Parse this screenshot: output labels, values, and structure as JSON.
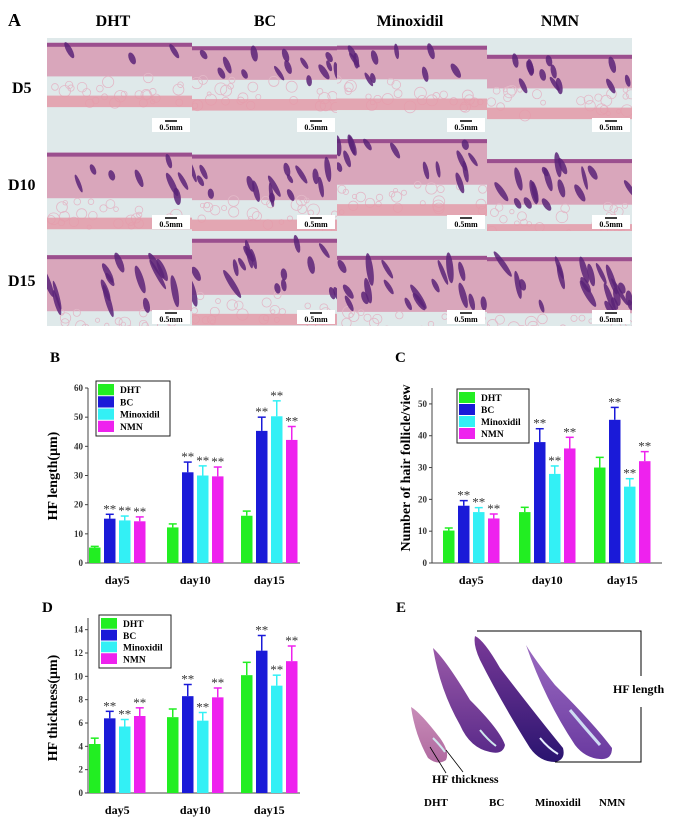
{
  "panel_labels": {
    "a": "A",
    "b": "B",
    "c": "C",
    "d": "D",
    "e": "E"
  },
  "panel_a": {
    "columns": [
      "DHT",
      "BC",
      "Minoxidil",
      "NMN"
    ],
    "rows": [
      "D5",
      "D10",
      "D15"
    ],
    "scale_bar": "0.5mm"
  },
  "colors": {
    "DHT": "#22ee22",
    "BC": "#1a1ad8",
    "Minoxidil": "#33f0f5",
    "NMN": "#ee22ee"
  },
  "chart_data": [
    {
      "panel": "B",
      "type": "bar",
      "categories": [
        "day5",
        "day10",
        "day15"
      ],
      "ylabel": "HF length(μm)",
      "ylim": [
        0,
        60
      ],
      "yticks": [
        0,
        10,
        20,
        30,
        40,
        50,
        60
      ],
      "legend": "top-left",
      "significance_label": "**",
      "series": [
        {
          "name": "DHT",
          "values": [
            5.3,
            12.2,
            16.2
          ],
          "errors": [
            0.4,
            1.2,
            1.6
          ],
          "significant": [
            false,
            false,
            false
          ]
        },
        {
          "name": "BC",
          "values": [
            15.2,
            31.1,
            45.3
          ],
          "errors": [
            1.5,
            3.5,
            4.7
          ],
          "significant": [
            true,
            true,
            true
          ]
        },
        {
          "name": "Minoxidil",
          "values": [
            14.6,
            30.0,
            50.3
          ],
          "errors": [
            1.5,
            3.3,
            5.3
          ],
          "significant": [
            true,
            true,
            true
          ]
        },
        {
          "name": "NMN",
          "values": [
            14.3,
            29.7,
            42.2
          ],
          "errors": [
            1.5,
            3.2,
            4.6
          ],
          "significant": [
            true,
            true,
            true
          ]
        }
      ]
    },
    {
      "panel": "C",
      "type": "bar",
      "categories": [
        "day5",
        "day10",
        "day15"
      ],
      "ylabel": "Number of hair follicle/view",
      "ylim": [
        0,
        55
      ],
      "yticks": [
        0,
        10,
        20,
        30,
        40,
        50
      ],
      "legend": "top-left",
      "significance_label": "**",
      "series": [
        {
          "name": "DHT",
          "values": [
            10.2,
            16,
            30
          ],
          "errors": [
            0.8,
            1.5,
            3.2
          ],
          "significant": [
            false,
            false,
            false
          ]
        },
        {
          "name": "BC",
          "values": [
            18,
            38,
            45
          ],
          "errors": [
            1.6,
            4.2,
            3.9
          ],
          "significant": [
            true,
            true,
            true
          ]
        },
        {
          "name": "Minoxidil",
          "values": [
            16,
            28,
            24
          ],
          "errors": [
            1.4,
            2.5,
            2.5
          ],
          "significant": [
            true,
            true,
            true
          ]
        },
        {
          "name": "NMN",
          "values": [
            14,
            36,
            32
          ],
          "errors": [
            1.4,
            3.5,
            3.0
          ],
          "significant": [
            true,
            true,
            true
          ]
        }
      ]
    },
    {
      "panel": "D",
      "type": "bar",
      "categories": [
        "day5",
        "day10",
        "day15"
      ],
      "ylabel": "HF thickness(μm)",
      "ylim": [
        0,
        15
      ],
      "yticks": [
        0,
        2,
        4,
        6,
        8,
        10,
        12,
        14
      ],
      "legend": "top-left",
      "significance_label": "**",
      "series": [
        {
          "name": "DHT",
          "values": [
            4.2,
            6.5,
            10.1
          ],
          "errors": [
            0.5,
            0.7,
            1.1
          ],
          "significant": [
            false,
            false,
            false
          ]
        },
        {
          "name": "BC",
          "values": [
            6.4,
            8.3,
            12.2
          ],
          "errors": [
            0.6,
            1.0,
            1.3
          ],
          "significant": [
            true,
            true,
            true
          ]
        },
        {
          "name": "Minoxidil",
          "values": [
            5.7,
            6.2,
            9.2
          ],
          "errors": [
            0.6,
            0.7,
            0.9
          ],
          "significant": [
            true,
            true,
            true
          ]
        },
        {
          "name": "NMN",
          "values": [
            6.6,
            8.2,
            11.3
          ],
          "errors": [
            0.7,
            0.8,
            1.3
          ],
          "significant": [
            true,
            true,
            true
          ]
        }
      ]
    }
  ],
  "panel_e": {
    "hf_length": "HF length",
    "hf_thickness": "HF thickness",
    "labels": [
      "DHT",
      "BC",
      "Minoxidil",
      "NMN"
    ]
  }
}
